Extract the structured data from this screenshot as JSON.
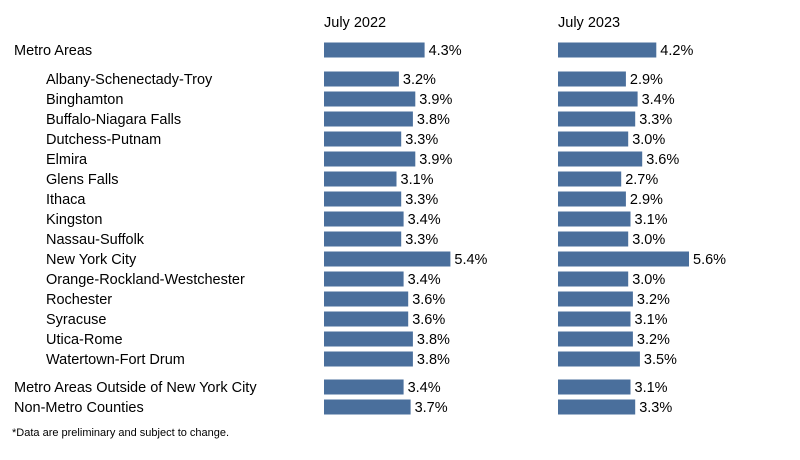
{
  "colors": {
    "bar": "#4a6f9c",
    "text": "#000000"
  },
  "footnote": "*Data are preliminary and subject to change.",
  "chart_data": {
    "type": "bar",
    "orientation": "horizontal",
    "series": [
      {
        "name": "July 2022",
        "values": [
          4.3,
          3.2,
          3.9,
          3.8,
          3.3,
          3.9,
          3.1,
          3.3,
          3.4,
          3.3,
          5.4,
          3.4,
          3.6,
          3.6,
          3.8,
          3.8,
          3.4,
          3.7
        ]
      },
      {
        "name": "July 2023",
        "values": [
          4.2,
          2.9,
          3.4,
          3.3,
          3.0,
          3.6,
          2.7,
          2.9,
          3.1,
          3.0,
          5.6,
          3.0,
          3.2,
          3.1,
          3.2,
          3.5,
          3.1,
          3.3
        ]
      }
    ],
    "categories": [
      "Metro Areas",
      "Albany-Schenectady-Troy",
      "Binghamton",
      "Buffalo-Niagara Falls",
      "Dutchess-Putnam",
      "Elmira",
      "Glens Falls",
      "Ithaca",
      "Kingston",
      "Nassau-Suffolk",
      "New York City",
      "Orange-Rockland-Westchester",
      "Rochester",
      "Syracuse",
      "Utica-Rome",
      "Watertown-Fort Drum",
      "Metro Areas Outside of New York City",
      "Non-Metro Counties"
    ],
    "indented": [
      false,
      true,
      true,
      true,
      true,
      true,
      true,
      true,
      true,
      true,
      true,
      true,
      true,
      true,
      true,
      true,
      false,
      false
    ],
    "value_suffix": "%",
    "grid": false,
    "legend": "none"
  }
}
